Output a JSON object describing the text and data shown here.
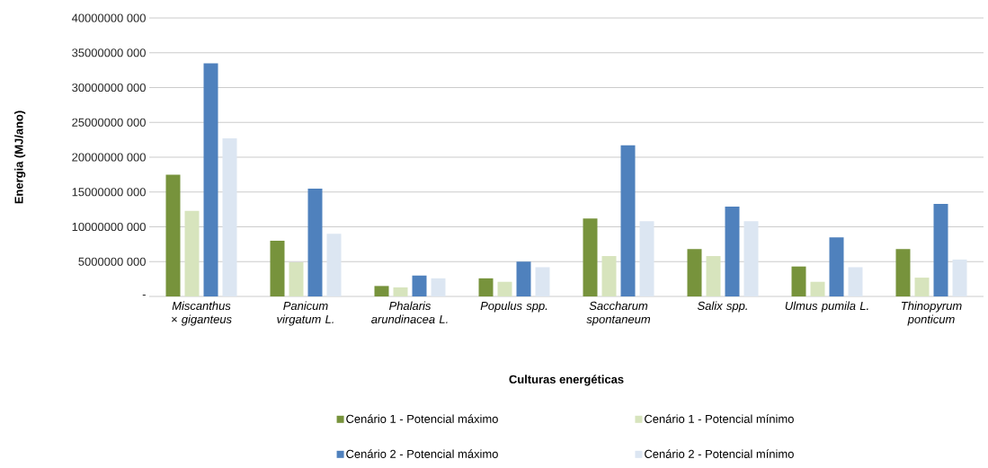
{
  "chart_data": {
    "type": "bar",
    "xlabel": "Culturas energéticas",
    "ylabel": "Energia (MJ/ano)",
    "categories": [
      "Miscanthus × giganteus",
      "Panicum virgatum L.",
      "Phalaris arundinacea L.",
      "Populus spp.",
      "Saccharum spontaneum",
      "Salix spp.",
      "Ulmus pumila L.",
      "Thinopyrum ponticum"
    ],
    "series": [
      {
        "name": "Cenário 1 - Potencial máximo",
        "color": "#77933c",
        "values": [
          17500000000,
          8000000000,
          1500000000,
          2600000000,
          11200000000,
          6800000000,
          4300000000,
          6800000000
        ]
      },
      {
        "name": "Cenário 1 - Potencial mínimo",
        "color": "#d7e4bd",
        "values": [
          12300000000,
          4900000000,
          1300000000,
          2100000000,
          5800000000,
          5800000000,
          2100000000,
          2700000000
        ]
      },
      {
        "name": "Cenário 2 - Potencial máximo",
        "color": "#4f81bd",
        "values": [
          33500000000,
          15500000000,
          3000000000,
          5000000000,
          21700000000,
          12900000000,
          8500000000,
          13300000000
        ]
      },
      {
        "name": "Cenário 2 - Potencial mínimo",
        "color": "#dce6f2",
        "values": [
          22700000000,
          9000000000,
          2600000000,
          4200000000,
          10800000000,
          10800000000,
          4200000000,
          5300000000
        ]
      }
    ],
    "ylim": [
      0,
      40000000000
    ],
    "yticks": [
      {
        "value": 0,
        "label": "-"
      },
      {
        "value": 5000000000,
        "label": "5000000 000"
      },
      {
        "value": 10000000000,
        "label": "10000000 000"
      },
      {
        "value": 15000000000,
        "label": "15000000 000"
      },
      {
        "value": 20000000000,
        "label": "20000000 000"
      },
      {
        "value": 25000000000,
        "label": "25000000 000"
      },
      {
        "value": 30000000000,
        "label": "30000000 000"
      },
      {
        "value": 35000000000,
        "label": "35000000 000"
      },
      {
        "value": 40000000000,
        "label": "40000000 000"
      }
    ],
    "grid": "y",
    "legend": "bottom"
  }
}
